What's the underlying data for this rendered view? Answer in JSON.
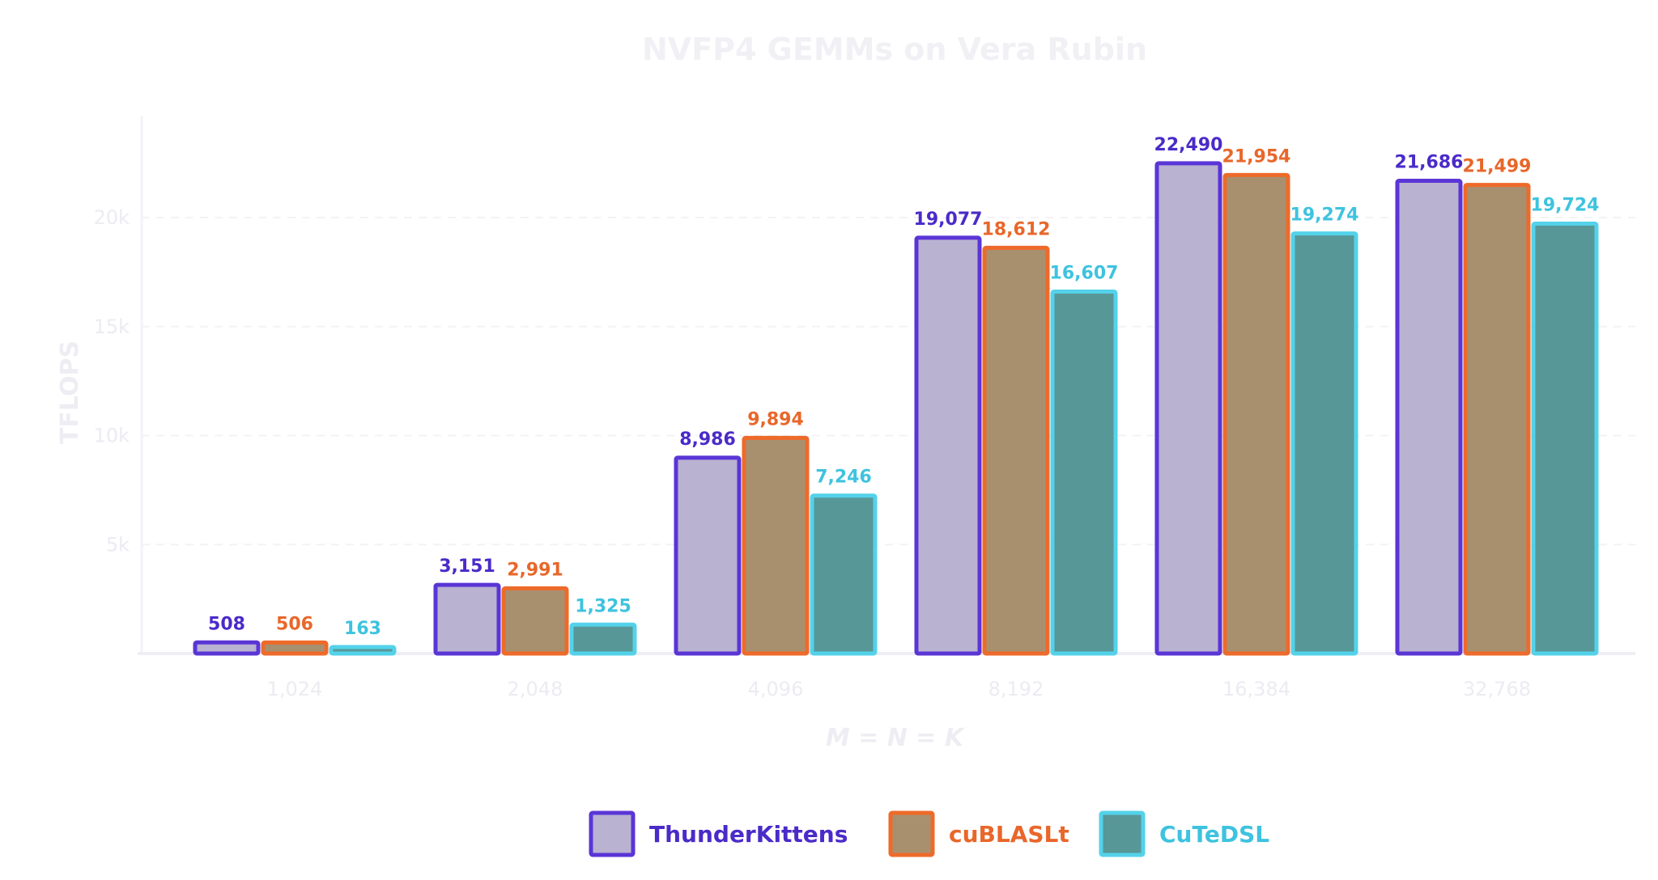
{
  "chart_data": {
    "type": "bar",
    "title": "NVFP4 GEMMs on Vera Rubin",
    "xlabel": "M = N = K",
    "ylabel": "TFLOPS",
    "categories": [
      "1,024",
      "2,048",
      "4,096",
      "8,192",
      "16,384",
      "32,768"
    ],
    "ylim": [
      0,
      24500
    ],
    "yticks": [
      {
        "value": 5000,
        "label": "5k"
      },
      {
        "value": 10000,
        "label": "10k"
      },
      {
        "value": 15000,
        "label": "15k"
      },
      {
        "value": 20000,
        "label": "20k"
      }
    ],
    "grid": true,
    "legend_position": "bottom",
    "series": [
      {
        "name": "ThunderKittens",
        "values": [
          508,
          3151,
          8986,
          19077,
          22490,
          21686
        ],
        "labels": [
          "508",
          "3,151",
          "8,986",
          "19,077",
          "22,490",
          "21,686"
        ],
        "fill": "#b9b2d1",
        "stroke": "#5a35d6",
        "text_color": "#4a2bc9"
      },
      {
        "name": "cuBLASLt",
        "values": [
          506,
          2991,
          9894,
          18612,
          21954,
          21499
        ],
        "labels": [
          "506",
          "2,991",
          "9,894",
          "18,612",
          "21,954",
          "21,499"
        ],
        "fill": "#a8906f",
        "stroke": "#ee6a2a",
        "text_color": "#e8672a"
      },
      {
        "name": "CuTeDSL",
        "values": [
          163,
          1325,
          7246,
          16607,
          19274,
          19724
        ],
        "labels": [
          "163",
          "1,325",
          "7,246",
          "16,607",
          "19,274",
          "19,724"
        ],
        "fill": "#579797",
        "stroke": "#53d2ea",
        "text_color": "#3ec3df"
      }
    ]
  }
}
